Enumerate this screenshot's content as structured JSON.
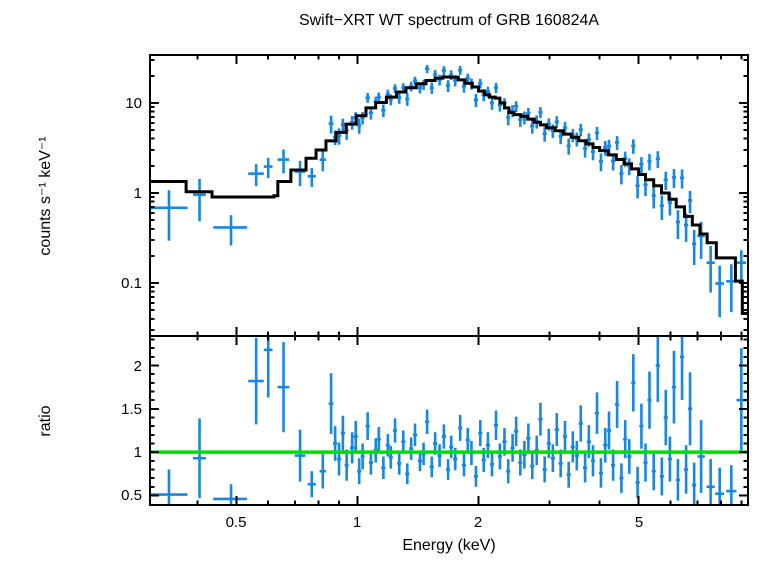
{
  "labels": {
    "title": "Swift−XRT WT spectrum of GRB 160824A",
    "ylabel_top": "counts s⁻¹ keV⁻¹",
    "ylabel_bottom": "ratio",
    "xlabel": "Energy (keV)",
    "ytick_top": [
      "10",
      "1",
      "0.1"
    ],
    "ytick_bottom": [
      "2",
      "1.5",
      "1",
      "0.5"
    ],
    "xtick": [
      "0.5",
      "1",
      "2",
      "5"
    ]
  },
  "colors": {
    "data": "#1787e4",
    "model": "#000000",
    "reference": "#00e000",
    "frame": "#000000",
    "background": "#ffffff"
  },
  "chart_data": {
    "type": "scatter",
    "title": "Swift−XRT WT spectrum of GRB 160824A",
    "xlabel": "Energy (keV)",
    "xscale": "log",
    "xlim": [
      0.305,
      9.35
    ],
    "xticks": [
      0.5,
      1,
      2,
      5
    ],
    "xticks_minor": [
      0.3,
      0.4,
      0.6,
      0.7,
      0.8,
      0.9,
      3,
      4,
      6,
      7,
      8,
      9
    ],
    "legend": "none",
    "grid": false,
    "panels": [
      {
        "name": "spectrum",
        "ylabel": "counts s⁻¹ keV⁻¹",
        "yscale": "log",
        "ylim": [
          0.0258,
          34
        ],
        "yticks": [
          0.1,
          1,
          10
        ],
        "yticks_minor": [
          0.03,
          0.04,
          0.05,
          0.06,
          0.07,
          0.08,
          0.09,
          0.2,
          0.3,
          0.4,
          0.5,
          0.6,
          0.7,
          0.8,
          0.9,
          2,
          3,
          4,
          5,
          6,
          7,
          8,
          9,
          20,
          30
        ],
        "series": [
          {
            "name": "observed counts",
            "style": "error-cross",
            "color": "#1787e4"
          },
          {
            "name": "folded model",
            "style": "step-line",
            "color": "#000000"
          }
        ]
      },
      {
        "name": "ratio",
        "ylabel": "ratio",
        "yscale": "linear",
        "ylim": [
          0.39,
          2.34
        ],
        "yticks": [
          0.5,
          1,
          1.5,
          2
        ],
        "yticks_minor": [
          0.4,
          0.6,
          0.7,
          0.8,
          0.9,
          1.1,
          1.2,
          1.3,
          1.4,
          1.6,
          1.7,
          1.8,
          1.9,
          2.1,
          2.2,
          2.3
        ],
        "reference_line": 1,
        "series": [
          {
            "name": "data/model ratio",
            "style": "error-cross",
            "color": "#1787e4"
          },
          {
            "name": "ratio = 1",
            "style": "line",
            "color": "#00e000"
          }
        ]
      }
    ],
    "model_step_format": "[energy_keV, counts_s_keV]; value holds until next energy",
    "model_step": [
      [
        0.305,
        1.34
      ],
      [
        0.375,
        1.03
      ],
      [
        0.435,
        0.9
      ],
      [
        0.62,
        0.93
      ],
      [
        0.634,
        1.34
      ],
      [
        0.683,
        1.8
      ],
      [
        0.745,
        2.43
      ],
      [
        0.789,
        3.0
      ],
      [
        0.835,
        3.78
      ],
      [
        0.885,
        4.7
      ],
      [
        0.937,
        5.8
      ],
      [
        0.993,
        7.2
      ],
      [
        1.05,
        8.8
      ],
      [
        1.11,
        10.1
      ],
      [
        1.18,
        11.6
      ],
      [
        1.25,
        13.2
      ],
      [
        1.32,
        14.7
      ],
      [
        1.4,
        16.3
      ],
      [
        1.48,
        17.7
      ],
      [
        1.56,
        18.8
      ],
      [
        1.63,
        19.4
      ],
      [
        1.7,
        19.3
      ],
      [
        1.78,
        18.0
      ],
      [
        1.85,
        16.5
      ],
      [
        1.93,
        15.0
      ],
      [
        2.0,
        13.5
      ],
      [
        2.07,
        12.3
      ],
      [
        2.13,
        11.6
      ],
      [
        2.2,
        11.3
      ],
      [
        2.26,
        10.0
      ],
      [
        2.32,
        8.8
      ],
      [
        2.38,
        7.8
      ],
      [
        2.45,
        7.4
      ],
      [
        2.55,
        7.1
      ],
      [
        2.65,
        6.6
      ],
      [
        2.75,
        6.1
      ],
      [
        2.85,
        5.7
      ],
      [
        2.95,
        5.3
      ],
      [
        3.1,
        4.9
      ],
      [
        3.25,
        4.5
      ],
      [
        3.4,
        4.15
      ],
      [
        3.55,
        3.8
      ],
      [
        3.7,
        3.5
      ],
      [
        3.85,
        3.2
      ],
      [
        4.0,
        2.95
      ],
      [
        4.2,
        2.65
      ],
      [
        4.4,
        2.35
      ],
      [
        4.6,
        2.1
      ],
      [
        4.8,
        1.85
      ],
      [
        5.0,
        1.6
      ],
      [
        5.2,
        1.4
      ],
      [
        5.45,
        1.2
      ],
      [
        5.7,
        1.0
      ],
      [
        5.95,
        0.85
      ],
      [
        6.2,
        0.7
      ],
      [
        6.5,
        0.55
      ],
      [
        6.8,
        0.44
      ],
      [
        7.1,
        0.35
      ],
      [
        7.4,
        0.28
      ],
      [
        7.8,
        0.19
      ],
      [
        8.7,
        0.105
      ],
      [
        9.05,
        0.046
      ],
      [
        9.35,
        0.046
      ]
    ],
    "points_format": "[energy_keV, energy_halfwidth_keV, ratio, ratio_error]; spectrum value = model(E) × ratio",
    "points": [
      [
        0.34,
        0.038,
        0.51,
        0.29
      ],
      [
        0.405,
        0.015,
        0.93,
        0.46
      ],
      [
        0.485,
        0.047,
        0.46,
        0.17
      ],
      [
        0.56,
        0.025,
        1.82,
        0.5
      ],
      [
        0.6,
        0.015,
        2.18,
        0.55
      ],
      [
        0.655,
        0.022,
        1.75,
        0.52
      ],
      [
        0.72,
        0.022,
        0.96,
        0.3
      ],
      [
        0.77,
        0.018,
        0.63,
        0.15
      ],
      [
        0.82,
        0.015,
        0.78,
        0.2
      ],
      [
        0.86,
        0.012,
        1.56,
        0.35
      ],
      [
        0.88,
        0.011,
        1.1,
        0.2
      ],
      [
        0.9,
        0.011,
        0.92,
        0.19
      ],
      [
        0.92,
        0.011,
        1.22,
        0.2
      ],
      [
        0.94,
        0.011,
        0.85,
        0.18
      ],
      [
        0.97,
        0.012,
        1.05,
        0.18
      ],
      [
        0.99,
        0.012,
        1.18,
        0.18
      ],
      [
        1.01,
        0.012,
        0.78,
        0.15
      ],
      [
        1.03,
        0.012,
        0.95,
        0.15
      ],
      [
        1.06,
        0.013,
        1.3,
        0.16
      ],
      [
        1.08,
        0.013,
        0.88,
        0.14
      ],
      [
        1.11,
        0.013,
        1.02,
        0.14
      ],
      [
        1.13,
        0.013,
        1.15,
        0.14
      ],
      [
        1.16,
        0.014,
        0.82,
        0.13
      ],
      [
        1.19,
        0.014,
        1.08,
        0.13
      ],
      [
        1.21,
        0.014,
        0.94,
        0.13
      ],
      [
        1.24,
        0.015,
        1.25,
        0.14
      ],
      [
        1.27,
        0.015,
        0.87,
        0.13
      ],
      [
        1.3,
        0.015,
        1.12,
        0.13
      ],
      [
        1.33,
        0.016,
        0.75,
        0.12
      ],
      [
        1.36,
        0.016,
        1.04,
        0.13
      ],
      [
        1.39,
        0.017,
        1.2,
        0.13
      ],
      [
        1.43,
        0.017,
        0.9,
        0.12
      ],
      [
        1.46,
        0.017,
        0.98,
        0.13
      ],
      [
        1.49,
        0.018,
        1.35,
        0.14
      ],
      [
        1.53,
        0.018,
        0.83,
        0.12
      ],
      [
        1.56,
        0.019,
        1.1,
        0.13
      ],
      [
        1.6,
        0.019,
        0.96,
        0.13
      ],
      [
        1.64,
        0.02,
        1.18,
        0.14
      ],
      [
        1.68,
        0.02,
        0.8,
        0.12
      ],
      [
        1.71,
        0.02,
        1.06,
        0.13
      ],
      [
        1.75,
        0.021,
        0.92,
        0.13
      ],
      [
        1.8,
        0.021,
        1.28,
        0.15
      ],
      [
        1.84,
        0.022,
        0.85,
        0.13
      ],
      [
        1.88,
        0.022,
        1.14,
        0.14
      ],
      [
        1.92,
        0.023,
        0.99,
        0.14
      ],
      [
        1.97,
        0.024,
        0.72,
        0.12
      ],
      [
        2.02,
        0.024,
        1.22,
        0.15
      ],
      [
        2.06,
        0.025,
        0.91,
        0.14
      ],
      [
        2.11,
        0.025,
        1.08,
        0.15
      ],
      [
        2.16,
        0.026,
        0.86,
        0.14
      ],
      [
        2.21,
        0.026,
        1.31,
        0.17
      ],
      [
        2.26,
        0.027,
        0.95,
        0.15
      ],
      [
        2.32,
        0.028,
        1.12,
        0.16
      ],
      [
        2.37,
        0.028,
        0.78,
        0.14
      ],
      [
        2.43,
        0.029,
        1.05,
        0.16
      ],
      [
        2.48,
        0.03,
        1.24,
        0.17
      ],
      [
        2.54,
        0.03,
        0.88,
        0.15
      ],
      [
        2.6,
        0.031,
        0.97,
        0.16
      ],
      [
        2.66,
        0.032,
        1.16,
        0.17
      ],
      [
        2.72,
        0.033,
        0.84,
        0.15
      ],
      [
        2.79,
        0.033,
        1.02,
        0.17
      ],
      [
        2.85,
        0.034,
        1.38,
        0.19
      ],
      [
        2.92,
        0.035,
        0.8,
        0.15
      ],
      [
        2.99,
        0.036,
        1.1,
        0.17
      ],
      [
        3.06,
        0.037,
        0.93,
        0.16
      ],
      [
        3.13,
        0.038,
        1.26,
        0.19
      ],
      [
        3.2,
        0.038,
        0.87,
        0.16
      ],
      [
        3.28,
        0.039,
        1.18,
        0.18
      ],
      [
        3.35,
        0.04,
        0.74,
        0.15
      ],
      [
        3.43,
        0.041,
        1.06,
        0.18
      ],
      [
        3.51,
        0.042,
        0.96,
        0.17
      ],
      [
        3.59,
        0.043,
        1.33,
        0.21
      ],
      [
        3.68,
        0.044,
        0.82,
        0.17
      ],
      [
        3.76,
        0.045,
        1.12,
        0.19
      ],
      [
        3.85,
        0.046,
        0.9,
        0.18
      ],
      [
        3.94,
        0.047,
        1.45,
        0.24
      ],
      [
        4.03,
        0.048,
        0.76,
        0.17
      ],
      [
        4.13,
        0.05,
        1.08,
        0.2
      ],
      [
        4.22,
        0.051,
        1.25,
        0.22
      ],
      [
        4.32,
        0.052,
        0.85,
        0.18
      ],
      [
        4.42,
        0.053,
        1.55,
        0.27
      ],
      [
        4.53,
        0.054,
        0.7,
        0.17
      ],
      [
        4.63,
        0.056,
        1.15,
        0.22
      ],
      [
        4.74,
        0.057,
        0.95,
        0.2
      ],
      [
        4.85,
        0.058,
        1.8,
        0.33
      ],
      [
        4.97,
        0.06,
        0.65,
        0.18
      ],
      [
        5.08,
        0.061,
        1.3,
        0.26
      ],
      [
        5.2,
        0.062,
        0.88,
        0.22
      ],
      [
        5.32,
        0.064,
        1.6,
        0.33
      ],
      [
        5.45,
        0.065,
        0.78,
        0.22
      ],
      [
        5.58,
        0.067,
        2.0,
        0.42
      ],
      [
        5.71,
        0.069,
        0.72,
        0.22
      ],
      [
        5.84,
        0.07,
        1.4,
        0.32
      ],
      [
        5.98,
        0.072,
        0.92,
        0.26
      ],
      [
        6.12,
        0.073,
        1.75,
        0.42
      ],
      [
        6.26,
        0.075,
        0.68,
        0.24
      ],
      [
        6.41,
        0.077,
        2.1,
        0.5
      ],
      [
        6.56,
        0.079,
        0.8,
        0.28
      ],
      [
        6.71,
        0.081,
        1.5,
        0.42
      ],
      [
        6.87,
        0.082,
        0.62,
        0.26
      ],
      [
        7.15,
        0.15,
        0.95,
        0.42
      ],
      [
        7.55,
        0.18,
        0.6,
        0.32
      ],
      [
        7.95,
        0.2,
        0.52,
        0.3
      ],
      [
        8.5,
        0.25,
        0.55,
        0.3
      ],
      [
        9.0,
        0.25,
        1.6,
        0.6
      ]
    ]
  }
}
